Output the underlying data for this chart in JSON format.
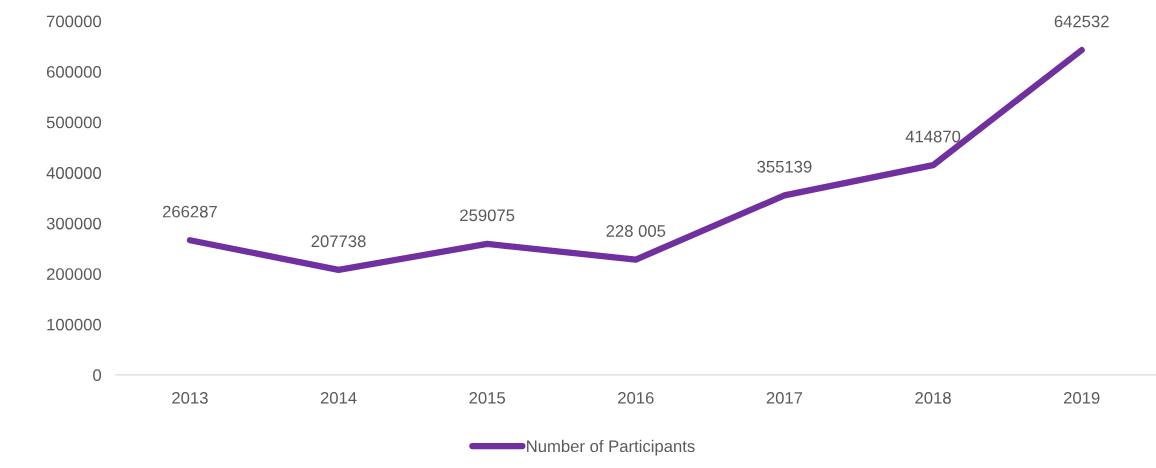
{
  "chart_data": {
    "type": "line",
    "categories": [
      "2013",
      "2014",
      "2015",
      "2016",
      "2017",
      "2018",
      "2019"
    ],
    "series": [
      {
        "name": "Number of Participants",
        "color": "#7030a0",
        "values": [
          266287,
          207738,
          259075,
          228005,
          355139,
          414870,
          642532
        ],
        "value_labels": [
          "266287",
          "207738",
          "259075",
          "228 005",
          "355139",
          "414870",
          "642532"
        ]
      }
    ],
    "ylim": [
      0,
      700000
    ],
    "yticks": [
      0,
      100000,
      200000,
      300000,
      400000,
      500000,
      600000,
      700000
    ],
    "grid": false,
    "legend": "bottom",
    "marker": "none",
    "line_style": "solid"
  }
}
